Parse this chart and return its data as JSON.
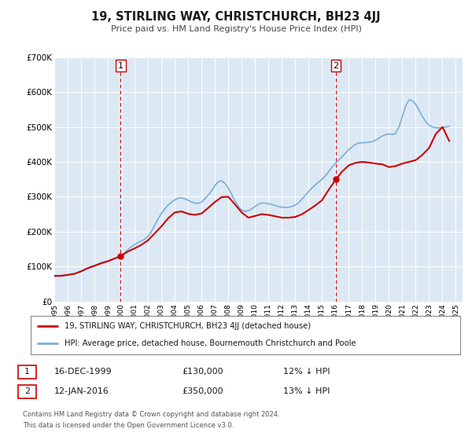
{
  "title": "19, STIRLING WAY, CHRISTCHURCH, BH23 4JJ",
  "subtitle": "Price paid vs. HM Land Registry's House Price Index (HPI)",
  "bg_color": "#ffffff",
  "plot_bg_color": "#dce9f5",
  "grid_color": "#ffffff",
  "ylim": [
    0,
    700000
  ],
  "yticks": [
    0,
    100000,
    200000,
    300000,
    400000,
    500000,
    600000,
    700000
  ],
  "ytick_labels": [
    "£0",
    "£100K",
    "£200K",
    "£300K",
    "£400K",
    "£500K",
    "£600K",
    "£700K"
  ],
  "xlim_start": 1995.0,
  "xlim_end": 2025.5,
  "xtick_years": [
    1995,
    1996,
    1997,
    1998,
    1999,
    2000,
    2001,
    2002,
    2003,
    2004,
    2005,
    2006,
    2007,
    2008,
    2009,
    2010,
    2011,
    2012,
    2013,
    2014,
    2015,
    2016,
    2017,
    2018,
    2019,
    2020,
    2021,
    2022,
    2023,
    2024,
    2025
  ],
  "sale1_x": 1999.96,
  "sale1_y": 130000,
  "sale1_label": "1",
  "sale1_date": "16-DEC-1999",
  "sale1_price": "£130,000",
  "sale1_hpi": "12% ↓ HPI",
  "sale2_x": 2016.04,
  "sale2_y": 350000,
  "sale2_label": "2",
  "sale2_date": "12-JAN-2016",
  "sale2_price": "£350,000",
  "sale2_hpi": "13% ↓ HPI",
  "red_line_color": "#cc0000",
  "blue_line_color": "#7aaed6",
  "sale_marker_color": "#cc0000",
  "dashed_line_color": "#cc0000",
  "legend_label_red": "19, STIRLING WAY, CHRISTCHURCH, BH23 4JJ (detached house)",
  "legend_label_blue": "HPI: Average price, detached house, Bournemouth Christchurch and Poole",
  "footer1": "Contains HM Land Registry data © Crown copyright and database right 2024.",
  "footer2": "This data is licensed under the Open Government Licence v3.0.",
  "hpi_data_x": [
    1995.0,
    1995.25,
    1995.5,
    1995.75,
    1996.0,
    1996.25,
    1996.5,
    1996.75,
    1997.0,
    1997.25,
    1997.5,
    1997.75,
    1998.0,
    1998.25,
    1998.5,
    1998.75,
    1999.0,
    1999.25,
    1999.5,
    1999.75,
    2000.0,
    2000.25,
    2000.5,
    2000.75,
    2001.0,
    2001.25,
    2001.5,
    2001.75,
    2002.0,
    2002.25,
    2002.5,
    2002.75,
    2003.0,
    2003.25,
    2003.5,
    2003.75,
    2004.0,
    2004.25,
    2004.5,
    2004.75,
    2005.0,
    2005.25,
    2005.5,
    2005.75,
    2006.0,
    2006.25,
    2006.5,
    2006.75,
    2007.0,
    2007.25,
    2007.5,
    2007.75,
    2008.0,
    2008.25,
    2008.5,
    2008.75,
    2009.0,
    2009.25,
    2009.5,
    2009.75,
    2010.0,
    2010.25,
    2010.5,
    2010.75,
    2011.0,
    2011.25,
    2011.5,
    2011.75,
    2012.0,
    2012.25,
    2012.5,
    2012.75,
    2013.0,
    2013.25,
    2013.5,
    2013.75,
    2014.0,
    2014.25,
    2014.5,
    2014.75,
    2015.0,
    2015.25,
    2015.5,
    2015.75,
    2016.0,
    2016.25,
    2016.5,
    2016.75,
    2017.0,
    2017.25,
    2017.5,
    2017.75,
    2018.0,
    2018.25,
    2018.5,
    2018.75,
    2019.0,
    2019.25,
    2019.5,
    2019.75,
    2020.0,
    2020.25,
    2020.5,
    2020.75,
    2021.0,
    2021.25,
    2021.5,
    2021.75,
    2022.0,
    2022.25,
    2022.5,
    2022.75,
    2023.0,
    2023.25,
    2023.5,
    2023.75,
    2024.0,
    2024.25,
    2024.5
  ],
  "hpi_data_y": [
    75000,
    73000,
    72000,
    74000,
    76000,
    78000,
    80000,
    83000,
    87000,
    91000,
    96000,
    100000,
    103000,
    107000,
    111000,
    114000,
    116000,
    119000,
    122000,
    126000,
    132000,
    139000,
    148000,
    157000,
    163000,
    168000,
    173000,
    178000,
    186000,
    200000,
    218000,
    236000,
    252000,
    265000,
    276000,
    284000,
    291000,
    296000,
    297000,
    294000,
    290000,
    285000,
    282000,
    281000,
    285000,
    294000,
    305000,
    317000,
    332000,
    343000,
    346000,
    338000,
    325000,
    307000,
    288000,
    272000,
    262000,
    258000,
    260000,
    265000,
    272000,
    278000,
    282000,
    282000,
    280000,
    278000,
    275000,
    272000,
    270000,
    269000,
    270000,
    272000,
    276000,
    283000,
    293000,
    304000,
    315000,
    325000,
    334000,
    342000,
    350000,
    360000,
    372000,
    385000,
    396000,
    405000,
    415000,
    425000,
    435000,
    443000,
    450000,
    454000,
    455000,
    455000,
    456000,
    458000,
    462000,
    468000,
    474000,
    478000,
    480000,
    478000,
    482000,
    500000,
    530000,
    560000,
    578000,
    575000,
    565000,
    548000,
    530000,
    515000,
    505000,
    500000,
    498000,
    497000,
    498000,
    500000,
    502000
  ],
  "price_paid_x": [
    1995.0,
    1995.5,
    1996.0,
    1996.5,
    1997.0,
    1997.5,
    1998.0,
    1998.5,
    1999.0,
    1999.5,
    1999.96,
    2000.5,
    2001.0,
    2001.5,
    2002.0,
    2002.5,
    2003.0,
    2003.5,
    2004.0,
    2004.5,
    2005.0,
    2005.5,
    2006.0,
    2006.5,
    2007.0,
    2007.5,
    2008.0,
    2008.5,
    2009.0,
    2009.5,
    2010.0,
    2010.5,
    2011.0,
    2011.5,
    2012.0,
    2012.5,
    2013.0,
    2013.5,
    2014.0,
    2014.5,
    2015.0,
    2015.5,
    2016.04,
    2016.5,
    2017.0,
    2017.5,
    2018.0,
    2018.5,
    2019.0,
    2019.5,
    2020.0,
    2020.5,
    2021.0,
    2021.5,
    2022.0,
    2022.5,
    2023.0,
    2023.5,
    2024.0,
    2024.5
  ],
  "price_paid_y": [
    73000,
    73500,
    76000,
    79000,
    86000,
    95000,
    102000,
    109000,
    115000,
    123000,
    130000,
    143000,
    152000,
    162000,
    175000,
    195000,
    215000,
    238000,
    255000,
    258000,
    251000,
    248000,
    252000,
    268000,
    285000,
    299000,
    300000,
    278000,
    255000,
    240000,
    245000,
    250000,
    248000,
    244000,
    240000,
    240000,
    242000,
    250000,
    262000,
    275000,
    290000,
    320000,
    350000,
    372000,
    390000,
    397000,
    400000,
    398000,
    395000,
    393000,
    385000,
    388000,
    395000,
    400000,
    405000,
    420000,
    440000,
    480000,
    500000,
    460000
  ]
}
